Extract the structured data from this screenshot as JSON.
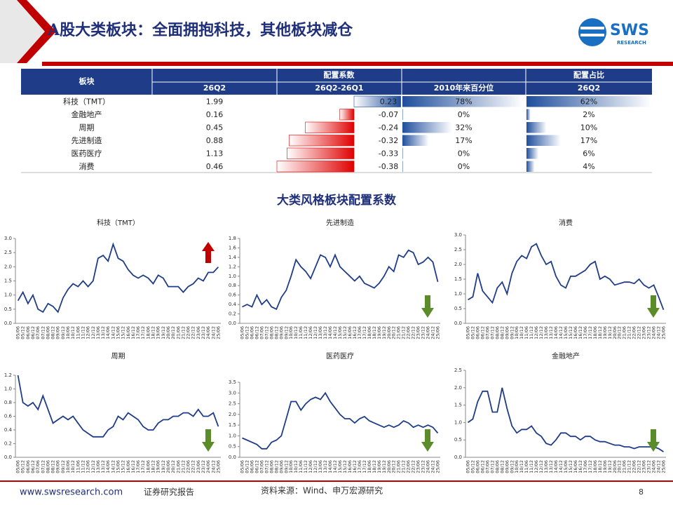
{
  "header": {
    "title": "A股大类板块：全面拥抱科技，其他板块减仓",
    "logo": "SWS",
    "logo_sub": "RESEARCH"
  },
  "table": {
    "head": {
      "sector": "板块",
      "coef": "配置系数",
      "share": "配置占比",
      "sub": [
        "26Q2",
        "26Q2-26Q1",
        "2010年来百分位",
        "26Q2"
      ]
    },
    "rows": [
      "科技（TMT）",
      "金融地产",
      "周期",
      "先进制造",
      "医药医疗",
      "消费"
    ],
    "coef": [
      1.99,
      0.16,
      0.45,
      0.88,
      1.13,
      0.46
    ],
    "change": [
      0.23,
      -0.07,
      -0.24,
      -0.32,
      -0.33,
      -0.38
    ],
    "percentile": {
      "values": [
        78,
        0,
        32,
        17,
        0,
        0
      ],
      "value_labels": [
        "78%",
        "0%",
        "32%",
        "17%",
        "0%",
        "0%"
      ]
    },
    "share_values": {
      "values": [
        62,
        2,
        10,
        17,
        6,
        4
      ],
      "value_labels": [
        "62%",
        "2%",
        "10%",
        "17%",
        "6%",
        "4%"
      ]
    }
  },
  "section_title": "大类风格板块配置系数",
  "chart_data": [
    {
      "type": "line",
      "title": "科技（TMT）",
      "color": "#1f3c88",
      "trend": "up",
      "categories": [
        "05/06",
        "05/12",
        "06/06",
        "06/12",
        "07/06",
        "07/12",
        "08/06",
        "08/12",
        "09/06",
        "09/12",
        "10/06",
        "10/12",
        "11/06",
        "11/12",
        "12/06",
        "12/12",
        "13/06",
        "13/12",
        "14/06",
        "14/12",
        "15/06",
        "15/12",
        "16/06",
        "16/12",
        "17/06",
        "17/12",
        "18/06",
        "18/12",
        "19/06",
        "19/12",
        "20/06",
        "20/12",
        "21/06",
        "21/12",
        "22/06",
        "22/12",
        "23/06",
        "23/12",
        "24/06",
        "24/12",
        "25/06"
      ],
      "values": [
        0.8,
        1.1,
        0.7,
        1.0,
        0.5,
        0.4,
        0.7,
        0.6,
        0.4,
        0.9,
        1.2,
        1.4,
        1.3,
        1.5,
        1.3,
        1.5,
        2.3,
        2.4,
        2.2,
        2.8,
        2.3,
        2.2,
        1.9,
        1.7,
        1.6,
        1.7,
        1.6,
        1.4,
        1.7,
        1.6,
        1.3,
        1.3,
        1.3,
        1.1,
        1.3,
        1.4,
        1.6,
        1.5,
        1.8,
        1.8,
        1.99
      ],
      "ylim": [
        0,
        3
      ],
      "yticks": [
        {
          "value": 0,
          "label": "0.0"
        },
        0.5,
        {
          "value": 1,
          "label": "1.0"
        },
        1.5,
        {
          "value": 2,
          "label": "2.0"
        },
        2.5,
        {
          "value": 3,
          "label": "3.0"
        }
      ]
    },
    {
      "type": "line",
      "title": "先进制造",
      "color": "#1f3c88",
      "trend": "down",
      "categories": [
        "05/06",
        "05/12",
        "06/06",
        "06/12",
        "07/06",
        "07/12",
        "08/06",
        "08/12",
        "09/06",
        "09/12",
        "10/06",
        "10/12",
        "11/06",
        "11/12",
        "12/06",
        "12/12",
        "13/06",
        "13/12",
        "14/06",
        "14/12",
        "15/06",
        "15/12",
        "16/06",
        "16/12",
        "17/06",
        "17/12",
        "18/06",
        "18/12",
        "19/06",
        "19/12",
        "20/06",
        "20/12",
        "21/06",
        "21/12",
        "22/06",
        "22/12",
        "23/06",
        "23/12",
        "24/06",
        "24/12",
        "25/06"
      ],
      "values": [
        0.35,
        0.4,
        0.35,
        0.6,
        0.4,
        0.5,
        0.35,
        0.3,
        0.55,
        0.7,
        1.0,
        1.35,
        1.2,
        1.1,
        0.95,
        1.2,
        1.45,
        1.4,
        1.2,
        1.45,
        1.2,
        1.1,
        1.0,
        0.9,
        1.0,
        0.85,
        0.8,
        0.75,
        0.85,
        1.0,
        1.2,
        1.1,
        1.45,
        1.4,
        1.55,
        1.5,
        1.25,
        1.3,
        1.4,
        1.3,
        0.88
      ],
      "ylim": [
        0,
        1.8
      ],
      "yticks": [
        {
          "value": 0,
          "label": "0.0"
        },
        0.2,
        0.4,
        0.6,
        0.8,
        {
          "value": 1,
          "label": "1.0"
        },
        1.2,
        1.4,
        1.6,
        1.8
      ]
    },
    {
      "type": "line",
      "title": "消费",
      "color": "#1f3c88",
      "trend": "down",
      "categories": [
        "05/06",
        "05/12",
        "06/06",
        "06/12",
        "07/06",
        "07/12",
        "08/06",
        "08/12",
        "09/06",
        "09/12",
        "10/06",
        "10/12",
        "11/06",
        "11/12",
        "12/06",
        "12/12",
        "13/06",
        "13/12",
        "14/06",
        "14/12",
        "15/06",
        "15/12",
        "16/06",
        "16/12",
        "17/06",
        "17/12",
        "18/06",
        "18/12",
        "19/06",
        "19/12",
        "20/06",
        "20/12",
        "21/06",
        "21/12",
        "22/06",
        "22/12",
        "23/06",
        "23/12",
        "24/06",
        "24/12",
        "25/06"
      ],
      "values": [
        0.8,
        0.9,
        1.7,
        1.1,
        0.9,
        0.7,
        1.2,
        1.4,
        1.0,
        1.7,
        2.1,
        2.3,
        2.2,
        2.6,
        2.7,
        2.3,
        2.0,
        2.1,
        1.6,
        1.3,
        1.2,
        1.6,
        1.6,
        1.7,
        1.8,
        2.0,
        2.1,
        1.5,
        1.6,
        1.5,
        1.3,
        1.35,
        1.4,
        1.4,
        1.35,
        1.5,
        1.3,
        1.2,
        1.3,
        0.9,
        0.46
      ],
      "ylim": [
        0,
        3
      ],
      "yticks": [
        {
          "value": 0,
          "label": "0.0"
        },
        0.5,
        {
          "value": 1,
          "label": "1.0"
        },
        1.5,
        {
          "value": 2,
          "label": "2.0"
        },
        2.5,
        {
          "value": 3,
          "label": "3.0"
        }
      ]
    },
    {
      "type": "line",
      "title": "周期",
      "color": "#1f3c88",
      "trend": "down",
      "categories": [
        "05/06",
        "05/12",
        "06/06",
        "06/12",
        "07/06",
        "07/12",
        "08/06",
        "08/12",
        "09/06",
        "09/12",
        "10/06",
        "10/12",
        "11/06",
        "11/12",
        "12/06",
        "12/12",
        "13/06",
        "13/12",
        "14/06",
        "14/12",
        "15/06",
        "15/12",
        "16/06",
        "16/12",
        "17/06",
        "17/12",
        "18/06",
        "18/12",
        "19/06",
        "19/12",
        "20/06",
        "20/12",
        "21/06",
        "21/12",
        "22/06",
        "22/12",
        "23/06",
        "23/12",
        "24/06",
        "24/12",
        "25/06"
      ],
      "values": [
        1.2,
        0.8,
        0.75,
        0.8,
        0.7,
        0.9,
        0.7,
        0.5,
        0.55,
        0.6,
        0.55,
        0.6,
        0.5,
        0.4,
        0.35,
        0.3,
        0.3,
        0.3,
        0.4,
        0.45,
        0.6,
        0.55,
        0.65,
        0.6,
        0.55,
        0.45,
        0.4,
        0.4,
        0.5,
        0.55,
        0.55,
        0.6,
        0.6,
        0.65,
        0.65,
        0.6,
        0.7,
        0.6,
        0.6,
        0.65,
        0.45
      ],
      "ylim": [
        0,
        1.2
      ],
      "yticks": [
        {
          "value": 0,
          "label": "0.0"
        },
        0.2,
        0.4,
        0.6,
        0.8,
        {
          "value": 1,
          "label": "1.0"
        },
        1.2
      ]
    },
    {
      "type": "line",
      "title": "医药医疗",
      "color": "#1f3c88",
      "trend": "down",
      "categories": [
        "05/06",
        "05/12",
        "06/06",
        "06/12",
        "07/06",
        "07/12",
        "08/06",
        "08/12",
        "09/06",
        "09/12",
        "10/06",
        "10/12",
        "11/06",
        "11/12",
        "12/06",
        "12/12",
        "13/06",
        "13/12",
        "14/06",
        "14/12",
        "15/06",
        "15/12",
        "16/06",
        "16/12",
        "17/06",
        "17/12",
        "18/06",
        "18/12",
        "19/06",
        "19/12",
        "20/06",
        "20/12",
        "21/06",
        "21/12",
        "22/06",
        "22/12",
        "23/06",
        "23/12",
        "24/06",
        "24/12",
        "25/06"
      ],
      "values": [
        0.9,
        0.8,
        0.7,
        0.6,
        0.4,
        0.4,
        0.7,
        0.8,
        1.0,
        1.8,
        2.6,
        2.6,
        2.2,
        2.5,
        2.7,
        2.8,
        2.7,
        3.0,
        2.6,
        2.3,
        2.0,
        1.8,
        1.8,
        1.6,
        1.8,
        1.9,
        1.7,
        1.6,
        1.5,
        1.4,
        1.5,
        1.4,
        1.5,
        1.7,
        1.6,
        1.4,
        1.5,
        1.4,
        1.5,
        1.4,
        1.13
      ],
      "ylim": [
        0,
        3.5
      ],
      "yticks": [
        {
          "value": 0,
          "label": "0.0"
        },
        0.5,
        {
          "value": 1,
          "label": "1.0"
        },
        1.5,
        {
          "value": 2,
          "label": "2.0"
        },
        2.5,
        {
          "value": 3,
          "label": "3.0"
        },
        3.5
      ]
    },
    {
      "type": "line",
      "title": "金融地产",
      "color": "#1f3c88",
      "trend": "down",
      "categories": [
        "05/06",
        "05/12",
        "06/06",
        "06/12",
        "07/06",
        "07/12",
        "08/06",
        "08/12",
        "09/06",
        "09/12",
        "10/06",
        "10/12",
        "11/06",
        "11/12",
        "12/06",
        "12/12",
        "13/06",
        "13/12",
        "14/06",
        "14/12",
        "15/06",
        "15/12",
        "16/06",
        "16/12",
        "17/06",
        "17/12",
        "18/06",
        "18/12",
        "19/06",
        "19/12",
        "20/06",
        "20/12",
        "21/06",
        "21/12",
        "22/06",
        "22/12",
        "23/06",
        "23/12",
        "24/06",
        "24/12",
        "25/06"
      ],
      "values": [
        1.0,
        1.1,
        1.6,
        1.9,
        1.9,
        1.3,
        1.3,
        2.0,
        1.4,
        0.9,
        0.7,
        0.8,
        0.8,
        0.9,
        0.7,
        0.6,
        0.4,
        0.35,
        0.5,
        0.7,
        0.7,
        0.6,
        0.6,
        0.5,
        0.6,
        0.6,
        0.5,
        0.45,
        0.45,
        0.4,
        0.35,
        0.35,
        0.3,
        0.3,
        0.25,
        0.3,
        0.3,
        0.3,
        0.3,
        0.25,
        0.16
      ],
      "ylim": [
        0,
        2.5
      ],
      "yticks": [
        {
          "value": 0,
          "label": "0.0"
        },
        0.5,
        {
          "value": 1,
          "label": "1.0"
        },
        1.5,
        {
          "value": 2,
          "label": "2.0"
        },
        2.5
      ]
    }
  ],
  "footer": {
    "site": "www.swsresearch.com",
    "kind": "证券研究报告",
    "source": "资料来源：Wind、申万宏源研究",
    "page": 8
  }
}
